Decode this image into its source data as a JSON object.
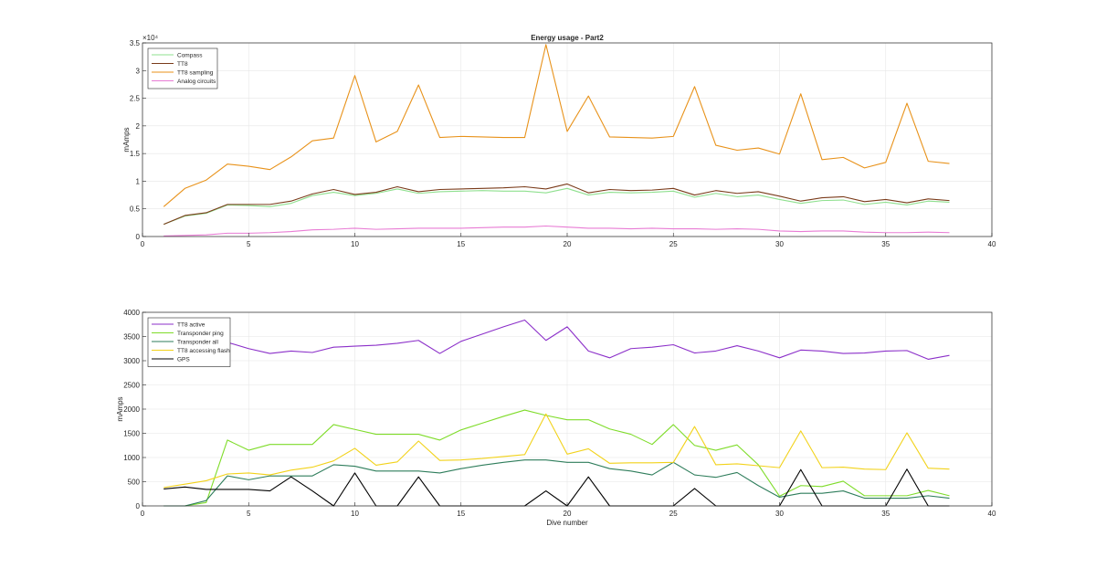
{
  "chart_data": [
    {
      "type": "line",
      "title": "Energy usage - Part2",
      "xlabel": "",
      "ylabel": "mAmps",
      "exponent_label": "×10⁴",
      "xlim": [
        0,
        40
      ],
      "ylim": [
        0,
        3.5
      ],
      "xticks": [
        0,
        5,
        10,
        15,
        20,
        25,
        30,
        35,
        40
      ],
      "yticks": [
        0,
        0.5,
        1,
        1.5,
        2,
        2.5,
        3,
        3.5
      ],
      "ytick_labels": [
        "0",
        "0.5",
        "1",
        "1.5",
        "2",
        "2.5",
        "3",
        "3.5"
      ],
      "grid": true,
      "legend_position": "top-left",
      "x": [
        1,
        2,
        3,
        4,
        5,
        6,
        7,
        8,
        9,
        10,
        11,
        12,
        13,
        14,
        15,
        16,
        17,
        18,
        19,
        20,
        21,
        22,
        23,
        24,
        25,
        26,
        27,
        28,
        29,
        30,
        31,
        32,
        33,
        34,
        35,
        36,
        37,
        38
      ],
      "series": [
        {
          "name": "Compass",
          "color": "#8fe08f",
          "values": [
            0.22,
            0.37,
            0.42,
            0.57,
            0.56,
            0.54,
            0.6,
            0.74,
            0.8,
            0.74,
            0.78,
            0.86,
            0.78,
            0.81,
            0.82,
            0.83,
            0.82,
            0.82,
            0.79,
            0.87,
            0.75,
            0.8,
            0.79,
            0.8,
            0.82,
            0.71,
            0.78,
            0.72,
            0.75,
            0.67,
            0.6,
            0.65,
            0.66,
            0.58,
            0.62,
            0.57,
            0.64,
            0.62
          ]
        },
        {
          "name": "TT8",
          "color": "#7a3b1a",
          "values": [
            0.22,
            0.38,
            0.43,
            0.58,
            0.58,
            0.58,
            0.64,
            0.77,
            0.85,
            0.76,
            0.8,
            0.9,
            0.81,
            0.85,
            0.86,
            0.87,
            0.88,
            0.9,
            0.86,
            0.95,
            0.79,
            0.85,
            0.83,
            0.84,
            0.87,
            0.75,
            0.83,
            0.78,
            0.81,
            0.73,
            0.64,
            0.7,
            0.72,
            0.63,
            0.67,
            0.61,
            0.68,
            0.65
          ]
        },
        {
          "name": "TT8 sampling",
          "color": "#e8921a",
          "values": [
            0.54,
            0.87,
            1.02,
            1.31,
            1.27,
            1.21,
            1.44,
            1.73,
            1.78,
            2.91,
            1.71,
            1.9,
            2.74,
            1.79,
            1.81,
            1.8,
            1.79,
            1.79,
            3.47,
            1.9,
            2.54,
            1.8,
            1.79,
            1.78,
            1.81,
            2.71,
            1.65,
            1.56,
            1.6,
            1.49,
            2.58,
            1.39,
            1.43,
            1.24,
            1.34,
            2.41,
            1.36,
            1.32
          ]
        },
        {
          "name": "Analog circuits",
          "color": "#e87bd4",
          "values": [
            0.01,
            0.02,
            0.03,
            0.06,
            0.06,
            0.07,
            0.09,
            0.12,
            0.13,
            0.15,
            0.13,
            0.14,
            0.15,
            0.15,
            0.15,
            0.16,
            0.17,
            0.17,
            0.19,
            0.17,
            0.15,
            0.15,
            0.14,
            0.15,
            0.14,
            0.14,
            0.13,
            0.14,
            0.13,
            0.1,
            0.09,
            0.1,
            0.1,
            0.08,
            0.07,
            0.07,
            0.08,
            0.07
          ]
        }
      ]
    },
    {
      "type": "line",
      "title": "",
      "xlabel": "Dive number",
      "ylabel": "mAmps",
      "xlim": [
        0,
        40
      ],
      "ylim": [
        0,
        4000
      ],
      "xticks": [
        0,
        5,
        10,
        15,
        20,
        25,
        30,
        35,
        40
      ],
      "yticks": [
        0,
        500,
        1000,
        1500,
        2000,
        2500,
        3000,
        3500,
        4000
      ],
      "ytick_labels": [
        "0",
        "500",
        "1000",
        "1500",
        "2000",
        "2500",
        "3000",
        "3500",
        "4000"
      ],
      "grid": true,
      "legend_position": "top-left",
      "x": [
        1,
        2,
        3,
        4,
        5,
        6,
        7,
        8,
        9,
        10,
        11,
        12,
        13,
        14,
        15,
        16,
        17,
        18,
        19,
        20,
        21,
        22,
        23,
        24,
        25,
        26,
        27,
        28,
        29,
        30,
        31,
        32,
        33,
        34,
        35,
        36,
        37,
        38
      ],
      "series": [
        {
          "name": "TT8 active",
          "color": "#8b2fc9",
          "values": [
            2950,
            2980,
            3050,
            3380,
            3250,
            3150,
            3200,
            3170,
            3280,
            3300,
            3320,
            3360,
            3420,
            3150,
            3400,
            3550,
            3700,
            3840,
            3420,
            3700,
            3200,
            3060,
            3250,
            3280,
            3330,
            3160,
            3200,
            3310,
            3200,
            3060,
            3220,
            3200,
            3150,
            3160,
            3200,
            3210,
            3030,
            3110
          ]
        },
        {
          "name": "Transponder ping",
          "color": "#7fdc2a",
          "values": [
            0,
            0,
            70,
            1360,
            1150,
            1270,
            1270,
            1270,
            1680,
            1580,
            1480,
            1480,
            1480,
            1360,
            1570,
            1710,
            1850,
            1980,
            1870,
            1780,
            1780,
            1590,
            1480,
            1270,
            1680,
            1250,
            1150,
            1260,
            850,
            200,
            420,
            400,
            510,
            210,
            210,
            210,
            320,
            210
          ]
        },
        {
          "name": "Transponder all",
          "color": "#2e7d5b",
          "values": [
            0,
            0,
            110,
            620,
            540,
            620,
            620,
            620,
            850,
            820,
            720,
            720,
            720,
            680,
            770,
            840,
            900,
            950,
            950,
            900,
            900,
            770,
            720,
            640,
            900,
            640,
            590,
            690,
            420,
            180,
            260,
            260,
            310,
            160,
            160,
            160,
            210,
            160
          ]
        },
        {
          "name": "TT8 accessing flash",
          "color": "#f2d21a",
          "values": [
            380,
            450,
            520,
            660,
            680,
            640,
            740,
            800,
            930,
            1190,
            840,
            910,
            1340,
            940,
            950,
            980,
            1020,
            1060,
            1900,
            1070,
            1180,
            880,
            890,
            890,
            900,
            1640,
            850,
            870,
            830,
            790,
            1550,
            790,
            800,
            760,
            750,
            1510,
            780,
            760
          ]
        },
        {
          "name": "GPS",
          "color": "#000000",
          "values": [
            350,
            390,
            340,
            340,
            340,
            310,
            600,
            310,
            0,
            680,
            0,
            0,
            600,
            0,
            0,
            0,
            0,
            0,
            310,
            0,
            600,
            0,
            0,
            0,
            0,
            360,
            0,
            0,
            0,
            0,
            750,
            0,
            0,
            0,
            0,
            760,
            0,
            0
          ]
        }
      ]
    }
  ]
}
